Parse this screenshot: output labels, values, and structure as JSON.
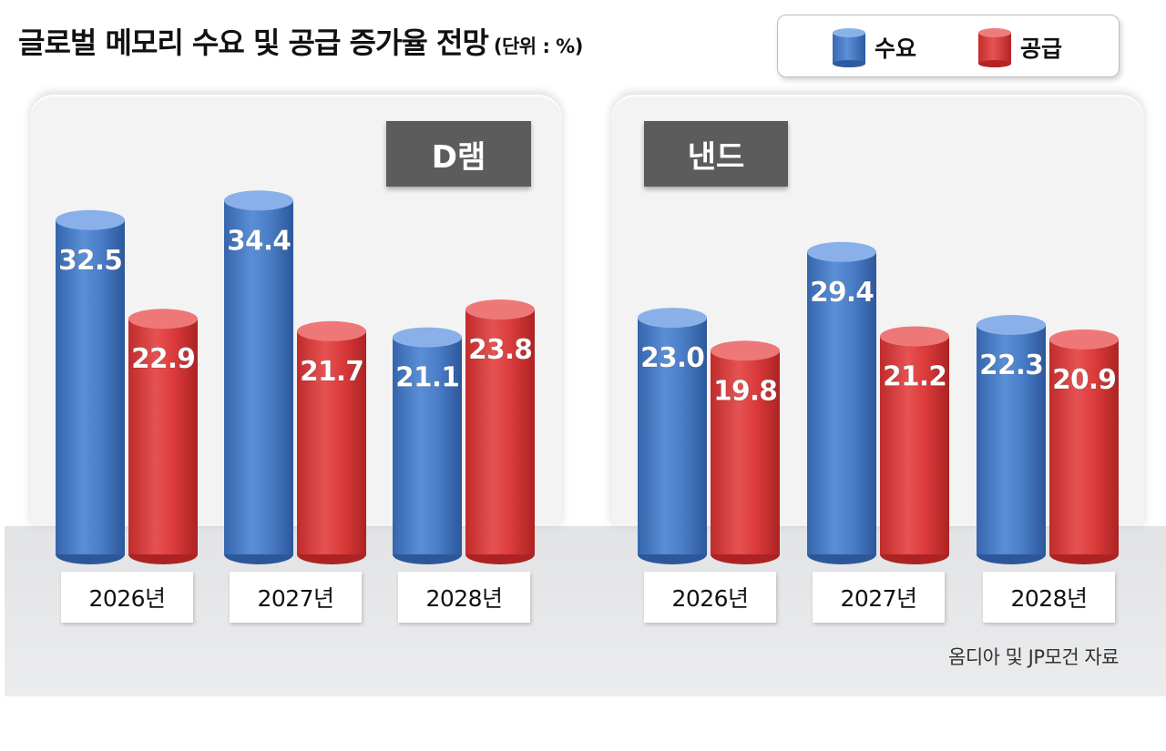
{
  "title": "글로벌 메모리 수요 및 공급 증가율 전망",
  "unit": "(단위 : %)",
  "legend": {
    "demand": "수요",
    "supply": "공급"
  },
  "colors": {
    "demand": "#4a7ec8",
    "supply": "#dc3b3b"
  },
  "source": "옴디아 및 JP모건 자료",
  "chart_data": [
    {
      "type": "bar",
      "title": "D램",
      "categories": [
        "2026년",
        "2027년",
        "2028년"
      ],
      "series": [
        {
          "name": "수요",
          "values": [
            32.5,
            34.4,
            21.1
          ]
        },
        {
          "name": "공급",
          "values": [
            22.9,
            21.7,
            23.8
          ]
        }
      ]
    },
    {
      "type": "bar",
      "title": "낸드",
      "categories": [
        "2026년",
        "2027년",
        "2028년"
      ],
      "series": [
        {
          "name": "수요",
          "values": [
            23.0,
            29.4,
            22.3
          ]
        },
        {
          "name": "공급",
          "values": [
            19.8,
            21.2,
            20.9
          ]
        }
      ]
    }
  ]
}
